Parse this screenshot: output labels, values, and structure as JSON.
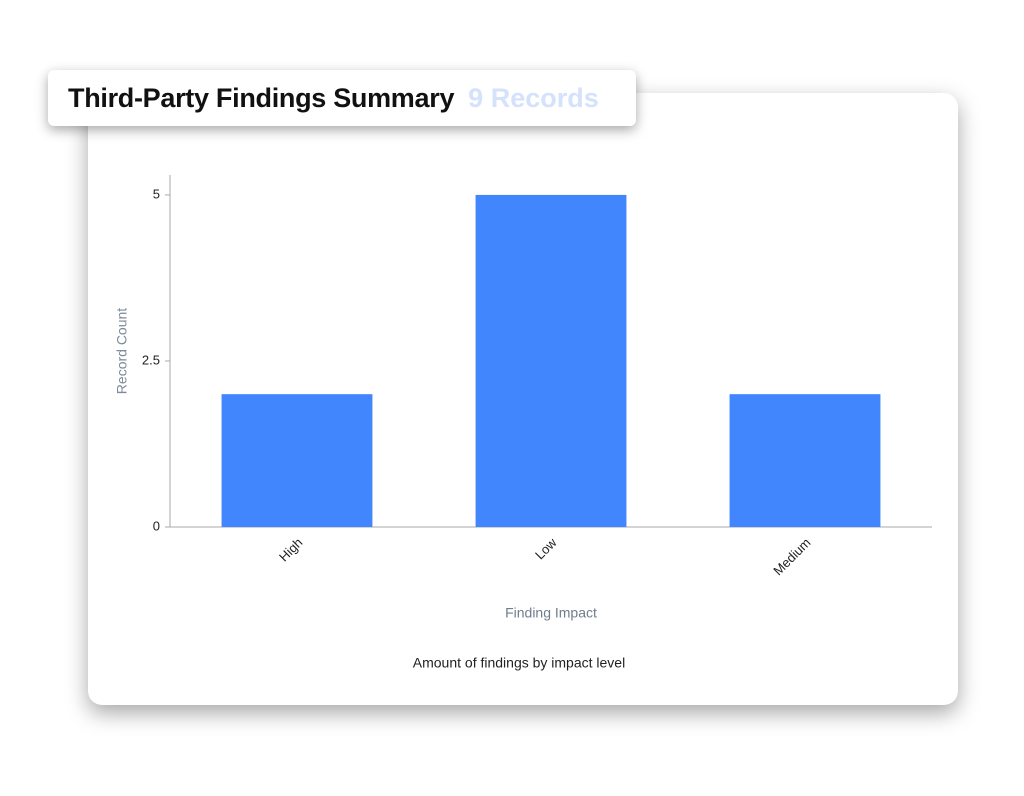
{
  "chart_data": {
    "type": "bar",
    "title": "Third-Party Findings Summary",
    "subtitle": "9 Records",
    "categories": [
      "High",
      "Low",
      "Medium"
    ],
    "values": [
      2,
      5,
      2
    ],
    "color": "#4286fe",
    "ylim": [
      0,
      5.3
    ],
    "yticks": [
      0,
      2.5,
      5
    ],
    "y_label": "Record Count",
    "x_label": "Finding Impact",
    "caption": "Amount of findings by impact level"
  }
}
